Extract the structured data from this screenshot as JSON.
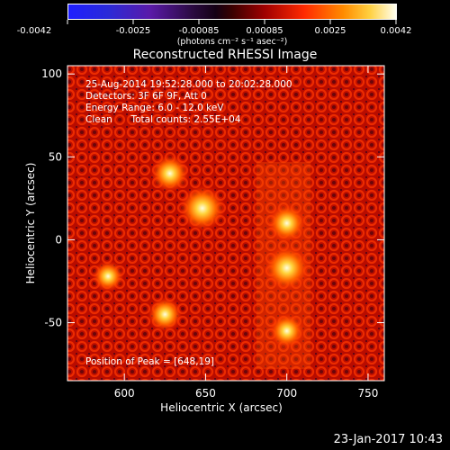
{
  "colorbar": {
    "ticks": [
      "-0.0042",
      "-0.0025",
      "-0.00085",
      "0.00085",
      "0.0025",
      "0.0042"
    ],
    "unit_label": "(photons cm⁻² s⁻¹ asec⁻²)",
    "range": [
      -0.0042,
      0.0042
    ]
  },
  "chart_data": {
    "type": "heatmap",
    "title": "Reconstructed RHESSI Image",
    "xlabel": "Heliocentric X (arcsec)",
    "ylabel": "Heliocentric Y (arcsec)",
    "xlim": [
      565,
      760
    ],
    "ylim": [
      -85,
      105
    ],
    "xticks": [
      "600",
      "650",
      "700",
      "750"
    ],
    "yticks": [
      "100",
      "50",
      "0",
      "-50"
    ],
    "xtick_values": [
      600,
      650,
      700,
      750
    ],
    "ytick_values": [
      100,
      50,
      0,
      -50
    ],
    "sources": [
      {
        "x": 648,
        "y": 19,
        "value": 0.0042
      },
      {
        "x": 700,
        "y": -17,
        "value": 0.004
      },
      {
        "x": 700,
        "y": 10,
        "value": 0.003
      },
      {
        "x": 628,
        "y": 40,
        "value": 0.003
      },
      {
        "x": 625,
        "y": -45,
        "value": 0.0025
      },
      {
        "x": 700,
        "y": -55,
        "value": 0.0025
      },
      {
        "x": 590,
        "y": -22,
        "value": 0.002
      }
    ],
    "annotations": {
      "time_range": "25-Aug-2014 19:52:28.000 to 20:02:28.000",
      "detectors": "Detectors: 3F 6F 9F, Att 0",
      "energy": "Energy Range: 6.0 - 12.0 keV",
      "method": "Clean",
      "counts": "Total counts: 2.55E+04",
      "peak": "Position of Peak = [648,19]"
    }
  },
  "footer": {
    "timestamp": "23-Jan-2017 10:43"
  }
}
